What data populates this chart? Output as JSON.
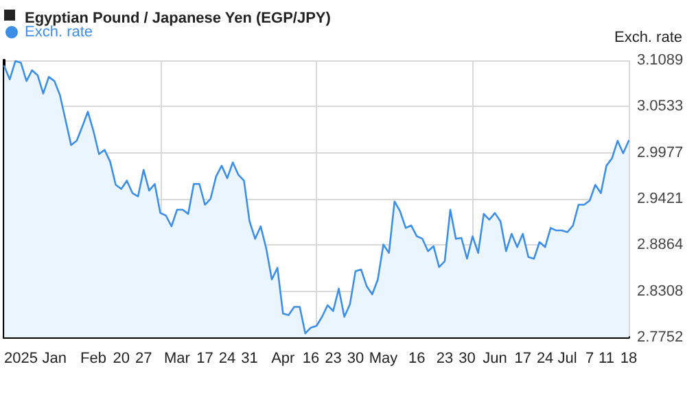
{
  "chart_data": {
    "type": "area",
    "title": "Egyptian Pound / Japanese Yen (EGP/JPY)",
    "ylabel": "Exch. rate",
    "categories": [
      null,
      null,
      null,
      "2025",
      null,
      null,
      null,
      null,
      null,
      "Jan",
      null,
      null,
      null,
      null,
      null,
      null,
      "Feb",
      null,
      null,
      null,
      null,
      "20",
      null,
      null,
      null,
      "27",
      null,
      null,
      null,
      null,
      null,
      "Mar",
      null,
      null,
      null,
      null,
      "17",
      null,
      null,
      null,
      "24",
      null,
      null,
      null,
      "31",
      null,
      null,
      null,
      null,
      null,
      "Apr",
      null,
      null,
      null,
      null,
      "16",
      null,
      null,
      null,
      "23",
      null,
      null,
      null,
      "30",
      null,
      null,
      null,
      null,
      "May",
      null,
      null,
      null,
      null,
      null,
      "16",
      null,
      null,
      null,
      null,
      "23",
      null,
      null,
      null,
      "30",
      null,
      null,
      null,
      null,
      "Jun",
      null,
      null,
      null,
      null,
      "17",
      null,
      null,
      null,
      "24",
      null,
      null,
      null,
      "Jul",
      null,
      null,
      null,
      "7",
      null,
      null,
      "11",
      null,
      null,
      null,
      "18"
    ],
    "series": [
      {
        "name": "Exch. rate",
        "color": "#3d8ee6",
        "values": [
          3.102,
          3.086,
          3.108,
          3.106,
          3.084,
          3.097,
          3.091,
          3.069,
          3.089,
          3.084,
          3.067,
          3.037,
          3.007,
          3.012,
          3.029,
          3.047,
          3.024,
          2.996,
          3.001,
          2.987,
          2.959,
          2.954,
          2.964,
          2.949,
          2.945,
          2.977,
          2.952,
          2.96,
          2.925,
          2.922,
          2.909,
          2.929,
          2.929,
          2.924,
          2.96,
          2.96,
          2.935,
          2.942,
          2.969,
          2.982,
          2.967,
          2.986,
          2.971,
          2.964,
          2.915,
          2.894,
          2.909,
          2.882,
          2.845,
          2.859,
          2.804,
          2.802,
          2.812,
          2.812,
          2.78,
          2.787,
          2.789,
          2.8,
          2.814,
          2.807,
          2.834,
          2.8,
          2.815,
          2.855,
          2.857,
          2.837,
          2.827,
          2.845,
          2.887,
          2.877,
          2.939,
          2.927,
          2.907,
          2.91,
          2.897,
          2.894,
          2.879,
          2.885,
          2.86,
          2.867,
          2.929,
          2.894,
          2.895,
          2.87,
          2.897,
          2.877,
          2.924,
          2.917,
          2.925,
          2.915,
          2.879,
          2.9,
          2.884,
          2.9,
          2.872,
          2.87,
          2.89,
          2.884,
          2.907,
          2.904,
          2.904,
          2.902,
          2.91,
          2.935,
          2.935,
          2.94,
          2.959,
          2.949,
          2.982,
          2.991,
          3.012,
          2.997,
          3.012
        ]
      }
    ],
    "ylim": [
      2.7752,
      3.1089
    ],
    "yticks": [
      2.7752,
      2.8308,
      2.8864,
      2.9421,
      2.9977,
      3.0533,
      3.1089
    ],
    "grid": true,
    "legend": "top left",
    "marker": "none",
    "line_style": "solid"
  }
}
